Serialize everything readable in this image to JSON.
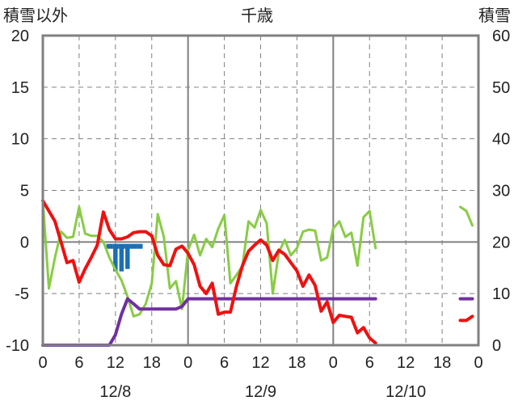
{
  "chart_data": {
    "type": "line",
    "title": "千歳",
    "ylabel_left": "積雪以外",
    "ylabel_right": "積雪",
    "ylim_left": [
      -10,
      20
    ],
    "ylim_right": [
      0,
      60
    ],
    "yticks_left": [
      "20",
      "15",
      "10",
      "5",
      "0",
      "-5",
      "-10"
    ],
    "yticks_right": [
      "60",
      "50",
      "40",
      "30",
      "20",
      "10",
      "0"
    ],
    "xlim_hours": [
      0,
      72
    ],
    "xticks": [
      "0",
      "6",
      "12",
      "18",
      "0",
      "6",
      "12",
      "18",
      "0",
      "6",
      "12",
      "18",
      "0"
    ],
    "date_labels": [
      "12/8",
      "12/9",
      "12/10"
    ],
    "grid": true,
    "colors": {
      "temperature": "#ee1111",
      "dew_point": "#88cc44",
      "precipitation": "#1a6fb5",
      "snow_depth": "#7030a0",
      "axis": "#808080"
    },
    "series": [
      {
        "key": "temperature",
        "axis": "left",
        "segments": [
          [
            [
              0,
              4
            ],
            [
              1,
              3
            ],
            [
              2,
              2
            ],
            [
              3,
              0
            ],
            [
              4,
              -2
            ],
            [
              5,
              -1.8
            ],
            [
              6,
              -3.9
            ],
            [
              7,
              -2.6
            ],
            [
              8,
              -1.5
            ],
            [
              9,
              -0.3
            ],
            [
              10,
              2.9
            ],
            [
              11,
              1.2
            ],
            [
              12,
              0.3
            ],
            [
              13,
              0.3
            ],
            [
              14,
              0.5
            ],
            [
              15,
              0.9
            ],
            [
              16,
              1
            ],
            [
              17,
              1
            ],
            [
              18,
              0.6
            ],
            [
              19,
              -1.3
            ],
            [
              20,
              -2.2
            ],
            [
              21,
              -2.3
            ],
            [
              22,
              -0.7
            ],
            [
              23,
              -0.4
            ],
            [
              24,
              -1.1
            ],
            [
              25,
              -2.2
            ],
            [
              26,
              -4.3
            ],
            [
              27,
              -5
            ],
            [
              28,
              -4
            ],
            [
              29,
              -7
            ],
            [
              30,
              -6.8
            ],
            [
              31,
              -6.8
            ],
            [
              32,
              -4.3
            ],
            [
              33,
              -2.3
            ],
            [
              34,
              -0.9
            ],
            [
              35,
              -0.3
            ],
            [
              36,
              0.2
            ],
            [
              37,
              -0.3
            ],
            [
              38,
              -1.8
            ],
            [
              39,
              -0.8
            ],
            [
              40,
              -1.2
            ],
            [
              41,
              -2
            ],
            [
              42,
              -2.8
            ],
            [
              43,
              -4.3
            ],
            [
              44,
              -3.2
            ],
            [
              45,
              -4.2
            ],
            [
              46,
              -6.7
            ],
            [
              47,
              -5.8
            ],
            [
              48,
              -7.8
            ],
            [
              49,
              -7.1
            ],
            [
              50,
              -7.2
            ],
            [
              51,
              -7.3
            ],
            [
              52,
              -8.8
            ],
            [
              53,
              -8.3
            ],
            [
              54,
              -9.3
            ],
            [
              55,
              -9.8
            ]
          ],
          [
            [
              69,
              -7.6
            ],
            [
              70,
              -7.6
            ],
            [
              71,
              -7.2
            ]
          ]
        ]
      },
      {
        "key": "dew_point",
        "axis": "left",
        "segments": [
          [
            [
              0,
              4
            ],
            [
              1,
              -4.5
            ],
            [
              2,
              -1.5
            ],
            [
              3,
              1
            ],
            [
              4,
              0.4
            ],
            [
              5,
              0.5
            ],
            [
              6,
              3.4
            ],
            [
              7,
              0.8
            ],
            [
              8,
              0.6
            ],
            [
              9,
              0.6
            ],
            [
              10,
              0
            ],
            [
              11,
              -1.5
            ],
            [
              12,
              -2.7
            ],
            [
              13,
              -3.7
            ],
            [
              14,
              -5.3
            ],
            [
              15,
              -7.2
            ],
            [
              16,
              -7
            ],
            [
              17,
              -6
            ],
            [
              18,
              -4
            ],
            [
              19,
              2.7
            ],
            [
              20,
              0.5
            ],
            [
              21,
              -4.5
            ],
            [
              22,
              -3.8
            ],
            [
              23,
              -6.5
            ],
            [
              24,
              -0.8
            ],
            [
              25,
              0.7
            ],
            [
              26,
              -1.3
            ],
            [
              27,
              0.3
            ],
            [
              28,
              -0.5
            ],
            [
              29,
              1.3
            ],
            [
              30,
              2.6
            ],
            [
              31,
              -4
            ],
            [
              32,
              -3.2
            ],
            [
              33,
              -2.3
            ],
            [
              34,
              2
            ],
            [
              35,
              1.4
            ],
            [
              36,
              3.1
            ],
            [
              37,
              1.8
            ],
            [
              38,
              -5
            ],
            [
              39,
              -1
            ],
            [
              40,
              0.2
            ],
            [
              41,
              -1.3
            ],
            [
              42,
              -0.6
            ],
            [
              43,
              1
            ],
            [
              44,
              1.2
            ],
            [
              45,
              1.1
            ],
            [
              46,
              -1.8
            ],
            [
              47,
              -1.5
            ],
            [
              48,
              1.3
            ],
            [
              49,
              2
            ],
            [
              50,
              0.5
            ],
            [
              51,
              0.9
            ],
            [
              52,
              -2.3
            ],
            [
              53,
              2.4
            ],
            [
              54,
              3
            ],
            [
              55,
              -0.6
            ]
          ],
          [
            [
              69,
              3.4
            ],
            [
              70,
              3
            ],
            [
              71,
              1.6
            ]
          ]
        ]
      },
      {
        "key": "snow_depth",
        "axis": "right",
        "segments": [
          [
            [
              0,
              0
            ],
            [
              1,
              0
            ],
            [
              2,
              0
            ],
            [
              3,
              0
            ],
            [
              4,
              0
            ],
            [
              5,
              0
            ],
            [
              6,
              0
            ],
            [
              7,
              0
            ],
            [
              8,
              0
            ],
            [
              9,
              0
            ],
            [
              10,
              0
            ],
            [
              11,
              0
            ],
            [
              12,
              2
            ],
            [
              13,
              6
            ],
            [
              14,
              9
            ],
            [
              15,
              8
            ],
            [
              16,
              7
            ],
            [
              17,
              7
            ],
            [
              18,
              7
            ],
            [
              19,
              7
            ],
            [
              20,
              7
            ],
            [
              21,
              7
            ],
            [
              22,
              7
            ],
            [
              23,
              7.5
            ],
            [
              24,
              9
            ],
            [
              25,
              9
            ],
            [
              26,
              9
            ],
            [
              27,
              9
            ],
            [
              28,
              9
            ],
            [
              29,
              9
            ],
            [
              30,
              9
            ],
            [
              31,
              9
            ],
            [
              32,
              9
            ],
            [
              33,
              9
            ],
            [
              34,
              9
            ],
            [
              35,
              9
            ],
            [
              36,
              9
            ],
            [
              37,
              9
            ],
            [
              38,
              9
            ],
            [
              39,
              9
            ],
            [
              40,
              9
            ],
            [
              41,
              9
            ],
            [
              42,
              9
            ],
            [
              43,
              9
            ],
            [
              44,
              9
            ],
            [
              45,
              9
            ],
            [
              46,
              9
            ],
            [
              47,
              9
            ],
            [
              48,
              9
            ],
            [
              49,
              9
            ],
            [
              50,
              9
            ],
            [
              51,
              9
            ],
            [
              52,
              9
            ],
            [
              53,
              9
            ],
            [
              54,
              9
            ],
            [
              55,
              9
            ]
          ],
          [
            [
              69,
              9
            ],
            [
              70,
              9
            ],
            [
              71,
              9
            ]
          ]
        ]
      },
      {
        "key": "precipitation",
        "axis": "left",
        "bars": [
          [
            11,
            -0.5,
            0.4
          ],
          [
            12,
            -0.5,
            1.0
          ],
          [
            13,
            -0.5,
            1.0
          ],
          [
            14,
            -0.5,
            0.9
          ],
          [
            15,
            -0.5,
            0.4
          ],
          [
            16,
            -0.5,
            0.3
          ]
        ]
      }
    ]
  }
}
